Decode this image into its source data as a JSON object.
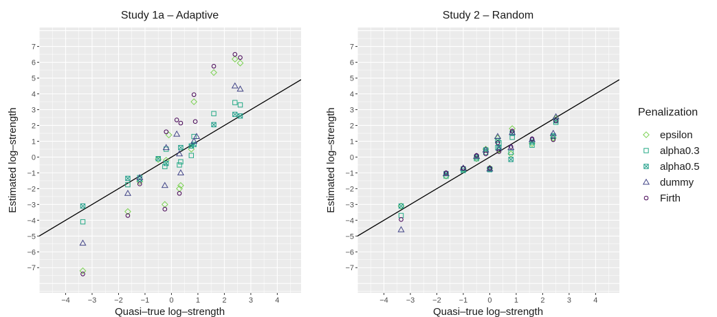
{
  "chart_data": [
    {
      "type": "scatter",
      "title": "Study 1a – Adaptive",
      "xlabel": "Quasi–true log–strength",
      "ylabel": "Estimated log–strength",
      "xlim": [
        -5.0,
        4.9
      ],
      "ylim": [
        -8.6,
        8.2
      ],
      "xticks": [
        -4,
        -3,
        -2,
        -1,
        0,
        1,
        2,
        3,
        4
      ],
      "xtick_labels": [
        "−4",
        "−3",
        "−2",
        "−1",
        "0",
        "1",
        "2",
        "3",
        "4"
      ],
      "yticks": [
        -7,
        -6,
        -5,
        -4,
        -3,
        -2,
        -1,
        0,
        1,
        2,
        3,
        4,
        5,
        6,
        7
      ],
      "ytick_labels": [
        "−7",
        "−6",
        "−5",
        "−4",
        "−3",
        "−2",
        "−1",
        "0",
        "1",
        "2",
        "3",
        "4",
        "5",
        "6",
        "7"
      ],
      "grid": true,
      "reference_line": {
        "x": [
          -5.0,
          4.9
        ],
        "y": [
          -5.0,
          4.9
        ]
      },
      "series": [
        {
          "name": "epsilon",
          "x": [
            -3.35,
            -1.65,
            -1.2,
            -0.5,
            -0.25,
            -0.2,
            -0.1,
            0.3,
            0.35,
            0.75,
            0.85,
            1.6,
            2.4,
            2.6
          ],
          "y": [
            -7.2,
            -3.45,
            -1.55,
            -0.15,
            -3.0,
            -0.2,
            1.4,
            -2.0,
            -1.8,
            0.5,
            3.5,
            5.35,
            6.2,
            5.95
          ]
        },
        {
          "name": "alpha0.3",
          "x": [
            -3.35,
            -1.65,
            -1.2,
            -0.25,
            -0.2,
            0.3,
            0.35,
            0.75,
            0.85,
            1.6,
            2.4,
            2.6
          ],
          "y": [
            -4.1,
            -1.75,
            -1.3,
            -0.6,
            0.5,
            -0.5,
            -0.3,
            0.1,
            1.3,
            2.75,
            3.45,
            3.3
          ]
        },
        {
          "name": "alpha0.5",
          "x": [
            -3.35,
            -1.65,
            -1.2,
            -0.5,
            -0.2,
            0.35,
            0.75,
            0.85,
            1.6,
            2.4,
            2.6
          ],
          "y": [
            -3.1,
            -1.35,
            -1.4,
            -0.1,
            -0.4,
            0.6,
            0.7,
            0.8,
            2.05,
            2.7,
            2.6
          ]
        },
        {
          "name": "dummy",
          "x": [
            -3.35,
            -1.65,
            -1.2,
            -0.25,
            -0.2,
            0.2,
            0.3,
            0.35,
            0.85,
            0.95,
            2.4,
            2.6
          ],
          "y": [
            -5.45,
            -2.3,
            -1.3,
            -1.8,
            0.6,
            1.45,
            0.2,
            -1.0,
            1.0,
            1.3,
            4.5,
            4.3
          ]
        },
        {
          "name": "Firth",
          "x": [
            -3.35,
            -1.65,
            -1.2,
            -0.25,
            -0.2,
            0.2,
            0.3,
            0.35,
            0.85,
            0.9,
            1.6,
            2.4,
            2.6
          ],
          "y": [
            -7.4,
            -3.7,
            -1.7,
            -3.3,
            1.6,
            2.35,
            -2.3,
            2.15,
            3.95,
            2.25,
            5.75,
            6.5,
            6.3
          ]
        }
      ]
    },
    {
      "type": "scatter",
      "title": "Study 2 – Random",
      "xlabel": "Quasi–true log–strength",
      "ylabel": "Estimated log–strength",
      "xlim": [
        -5.0,
        4.9
      ],
      "ylim": [
        -8.6,
        8.2
      ],
      "xticks": [
        -4,
        -3,
        -2,
        -1,
        0,
        1,
        2,
        3,
        4
      ],
      "xtick_labels": [
        "−4",
        "−3",
        "−2",
        "−1",
        "0",
        "1",
        "2",
        "3",
        "4"
      ],
      "yticks": [
        -7,
        -6,
        -5,
        -4,
        -3,
        -2,
        -1,
        0,
        1,
        2,
        3,
        4,
        5,
        6,
        7
      ],
      "ytick_labels": [
        "−7",
        "−6",
        "−5",
        "−4",
        "−3",
        "−2",
        "−1",
        "0",
        "1",
        "2",
        "3",
        "4",
        "5",
        "6",
        "7"
      ],
      "grid": true,
      "reference_line": {
        "x": [
          -5.0,
          4.9
        ],
        "y": [
          -5.0,
          4.9
        ]
      },
      "series": [
        {
          "name": "epsilon",
          "x": [
            -3.35,
            -1.65,
            -1.0,
            -0.5,
            -0.15,
            0.0,
            0.3,
            0.35,
            0.8,
            0.85,
            1.6,
            2.4,
            2.5
          ],
          "y": [
            -3.1,
            -1.2,
            -0.75,
            -0.1,
            0.5,
            -0.7,
            1.2,
            0.45,
            0.2,
            1.8,
            0.85,
            1.2,
            2.45
          ]
        },
        {
          "name": "alpha0.3",
          "x": [
            -3.35,
            -1.65,
            -1.0,
            -0.5,
            -0.15,
            0.0,
            0.3,
            0.35,
            0.8,
            0.85,
            1.6,
            2.4,
            2.5
          ],
          "y": [
            -3.7,
            -1.2,
            -0.75,
            -0.1,
            0.3,
            -0.8,
            0.6,
            0.9,
            0.3,
            1.25,
            0.75,
            1.3,
            2.2
          ]
        },
        {
          "name": "alpha0.5",
          "x": [
            -3.35,
            -1.65,
            -1.0,
            -0.5,
            -0.15,
            0.0,
            0.3,
            0.35,
            0.8,
            0.85,
            1.6,
            2.4,
            2.5
          ],
          "y": [
            -3.1,
            -1.05,
            -0.85,
            0.0,
            0.45,
            -0.75,
            1.05,
            0.6,
            -0.15,
            1.5,
            0.95,
            1.35,
            2.3
          ]
        },
        {
          "name": "dummy",
          "x": [
            -3.35,
            -1.65,
            -1.0,
            -0.5,
            -0.15,
            0.0,
            0.3,
            0.35,
            0.8,
            0.85,
            1.6,
            2.4,
            2.5
          ],
          "y": [
            -4.6,
            -1.05,
            -0.7,
            0.05,
            0.45,
            -0.75,
            1.3,
            0.55,
            0.6,
            1.55,
            1.1,
            1.5,
            2.55
          ]
        },
        {
          "name": "Firth",
          "x": [
            -3.35,
            -1.65,
            -1.0,
            -0.5,
            -0.15,
            0.0,
            0.3,
            0.35,
            0.8,
            0.85,
            1.6,
            2.4,
            2.5
          ],
          "y": [
            -3.95,
            -1.0,
            -0.7,
            0.1,
            0.2,
            -0.7,
            0.9,
            0.35,
            0.65,
            1.65,
            1.15,
            1.1,
            2.3
          ]
        }
      ]
    }
  ],
  "legend": {
    "title": "Penalization",
    "position": "right",
    "items": [
      {
        "label": "epsilon",
        "shape": "diamond",
        "color": "#7ad151"
      },
      {
        "label": "alpha0.3",
        "shape": "square",
        "color": "#22a884"
      },
      {
        "label": "alpha0.5",
        "shape": "square-cross",
        "color": "#1f9e89"
      },
      {
        "label": "dummy",
        "shape": "triangle",
        "color": "#414487"
      },
      {
        "label": "Firth",
        "shape": "circle",
        "color": "#440154"
      }
    ]
  },
  "colors": {
    "panel_bg": "#ebebeb",
    "grid": "#ffffff",
    "reference_line": "#000000",
    "text": "#1a1a1a",
    "tick_text": "#4d4d4d"
  }
}
